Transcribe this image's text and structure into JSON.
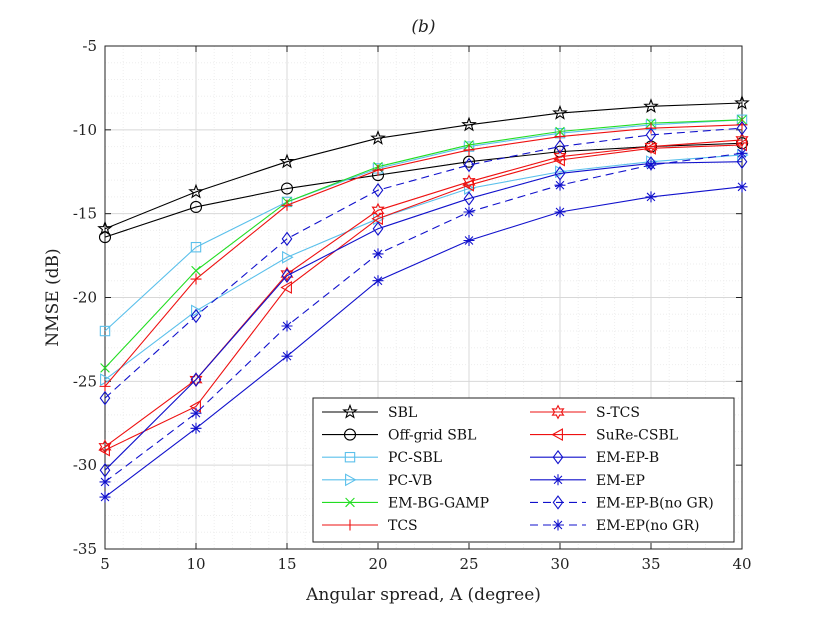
{
  "chart_data": {
    "type": "line",
    "title": "(b)",
    "xlabel": "Angular spread, A (degree)",
    "ylabel": "NMSE (dB)",
    "xlim": [
      5,
      40
    ],
    "ylim": [
      -35,
      -5
    ],
    "xticks": [
      5,
      10,
      15,
      20,
      25,
      30,
      35,
      40
    ],
    "yticks": [
      -35,
      -30,
      -25,
      -20,
      -15,
      -10,
      -5
    ],
    "grid": true,
    "legend_position": "bottom-right",
    "x": [
      5,
      10,
      15,
      20,
      25,
      30,
      35,
      40
    ],
    "series": [
      {
        "name": "SBL",
        "color": "#000000",
        "dash": "solid",
        "marker": "star",
        "values": [
          -15.9,
          -13.7,
          -11.9,
          -10.5,
          -9.7,
          -9.0,
          -8.6,
          -8.4
        ]
      },
      {
        "name": "Off-grid SBL",
        "color": "#000000",
        "dash": "solid",
        "marker": "circle",
        "values": [
          -16.4,
          -14.6,
          -13.5,
          -12.7,
          -11.9,
          -11.3,
          -11.0,
          -10.8
        ]
      },
      {
        "name": "PC-SBL",
        "color": "#5bc0eb",
        "dash": "solid",
        "marker": "square",
        "values": [
          -22.0,
          -17.0,
          -14.3,
          -12.3,
          -11.0,
          -10.2,
          -9.7,
          -9.4
        ]
      },
      {
        "name": "PC-VB",
        "color": "#5bc0eb",
        "dash": "solid",
        "marker": "triangle-right",
        "values": [
          -24.9,
          -20.8,
          -17.6,
          -15.3,
          -13.5,
          -12.5,
          -11.9,
          -11.5
        ]
      },
      {
        "name": "EM-BG-GAMP",
        "color": "#22dd22",
        "dash": "solid",
        "marker": "x",
        "values": [
          -24.2,
          -18.4,
          -14.3,
          -12.2,
          -10.9,
          -10.1,
          -9.6,
          -9.4
        ]
      },
      {
        "name": "TCS",
        "color": "#ee1111",
        "dash": "solid",
        "marker": "plus",
        "values": [
          -25.3,
          -18.9,
          -14.5,
          -12.4,
          -11.2,
          -10.4,
          -9.9,
          -9.7
        ]
      },
      {
        "name": "S-TCS",
        "color": "#ee1111",
        "dash": "solid",
        "marker": "hexagram",
        "values": [
          -28.9,
          -24.9,
          -18.6,
          -14.8,
          -13.1,
          -11.6,
          -11.0,
          -10.6
        ]
      },
      {
        "name": "SuRe-CSBL",
        "color": "#ee1111",
        "dash": "solid",
        "marker": "triangle-left",
        "values": [
          -29.1,
          -26.5,
          -19.4,
          -15.3,
          -13.3,
          -11.8,
          -11.1,
          -10.9
        ]
      },
      {
        "name": "EM-EP-B",
        "color": "#1111cc",
        "dash": "solid",
        "marker": "diamond",
        "values": [
          -30.3,
          -24.9,
          -18.7,
          -15.9,
          -14.1,
          -12.6,
          -12.0,
          -11.9
        ]
      },
      {
        "name": "EM-EP",
        "color": "#1111cc",
        "dash": "solid",
        "marker": "asterisk",
        "values": [
          -31.9,
          -27.8,
          -23.5,
          -19.0,
          -16.6,
          -14.9,
          -14.0,
          -13.4
        ]
      },
      {
        "name": "EM-EP-B(no GR)",
        "color": "#1111cc",
        "dash": "dashed",
        "marker": "diamond",
        "values": [
          -26.0,
          -21.1,
          -16.5,
          -13.6,
          -12.1,
          -11.0,
          -10.3,
          -9.9
        ]
      },
      {
        "name": "EM-EP(no GR)",
        "color": "#1111cc",
        "dash": "dashed",
        "marker": "asterisk",
        "values": [
          -31.0,
          -26.9,
          -21.7,
          -17.4,
          -14.9,
          -13.3,
          -12.1,
          -11.4
        ]
      }
    ]
  }
}
